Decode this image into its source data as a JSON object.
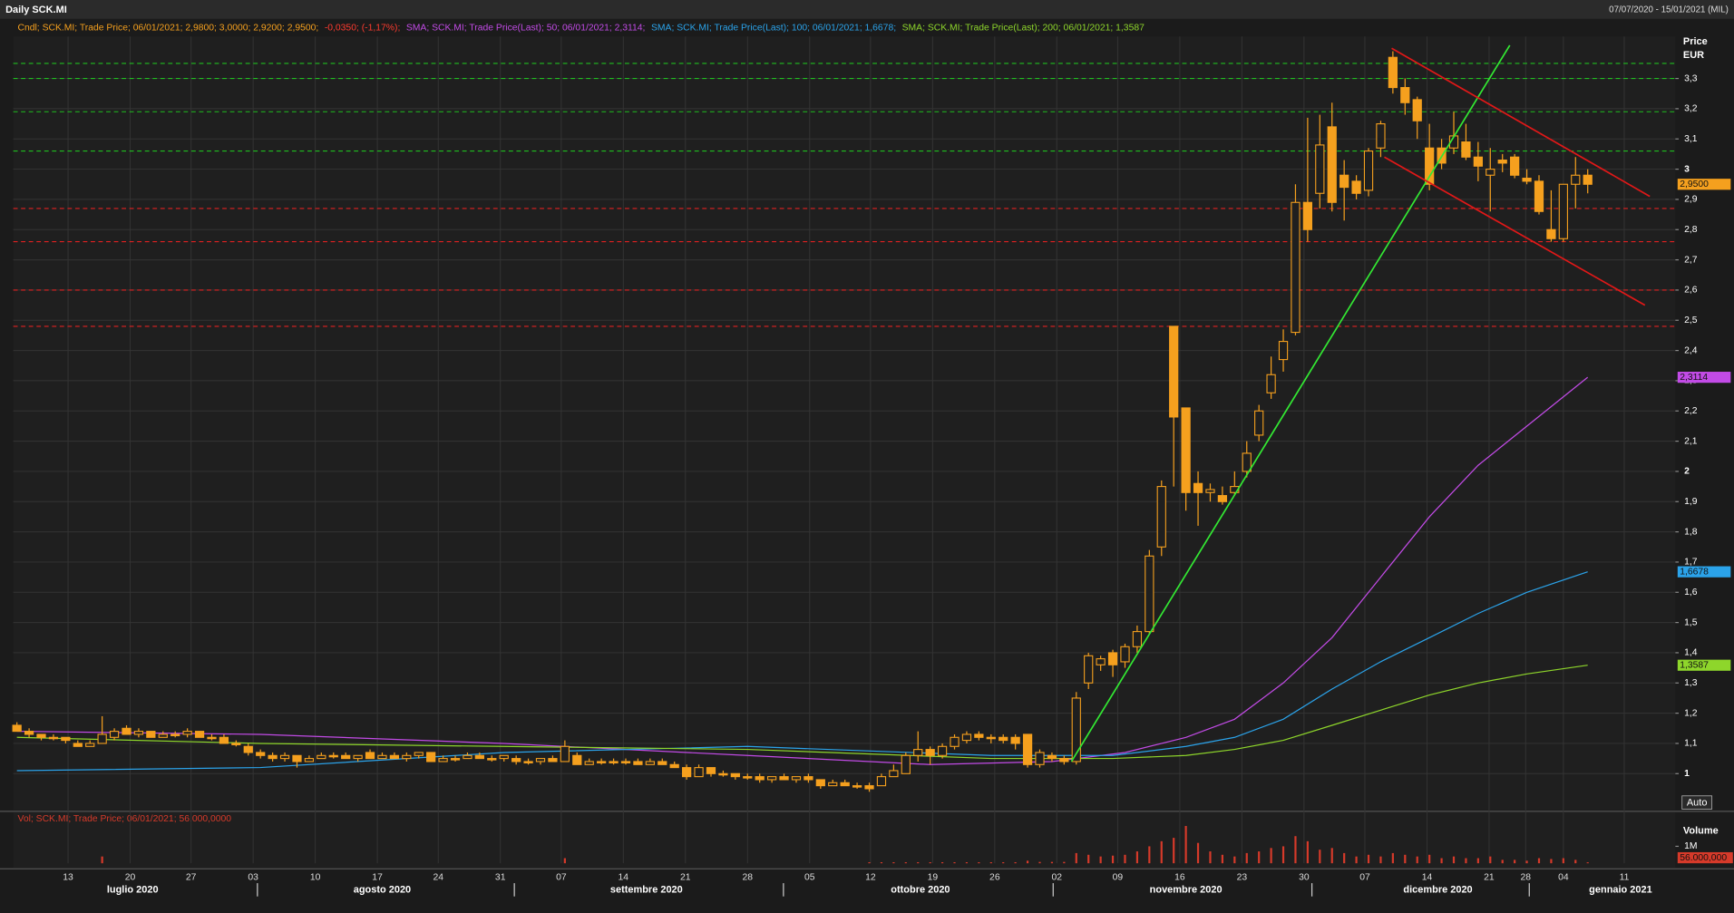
{
  "header": {
    "title": "Daily SCK.MI",
    "range": "07/07/2020 - 15/01/2021 (MIL)"
  },
  "chart_data": {
    "type": "candlestick",
    "candle_legend": "Cndl; SCK.MI; Trade Price; 06/01/2021; 2,9800; 3,0000; 2,9200; 2,9500;",
    "change": "-0,0350; (-1,17%);",
    "color": "#f5a01e",
    "change_color": "#ff3b2f",
    "open": [
      1.16,
      1.14,
      1.13,
      1.12,
      1.12,
      1.1,
      1.09,
      1.1,
      1.12,
      1.15,
      1.13,
      1.14,
      1.12,
      1.13,
      1.13,
      1.14,
      1.12,
      1.12,
      1.1,
      1.09,
      1.07,
      1.06,
      1.05,
      1.06,
      1.04,
      1.05,
      1.06,
      1.06,
      1.05,
      1.07,
      1.05,
      1.06,
      1.05,
      1.06,
      1.07,
      1.04,
      1.05,
      1.05,
      1.06,
      1.05,
      1.05,
      1.05,
      1.04,
      1.04,
      1.05,
      1.04,
      1.06,
      1.03,
      1.04,
      1.04,
      1.04,
      1.04,
      1.03,
      1.04,
      1.03,
      1.02,
      0.99,
      1.02,
      1.0,
      1.0,
      0.99,
      0.99,
      0.98,
      0.99,
      0.98,
      0.99,
      0.98,
      0.96,
      0.97,
      0.96,
      0.96,
      0.96,
      0.99,
      1.0,
      1.06,
      1.08,
      1.06,
      1.09,
      1.11,
      1.13,
      1.12,
      1.12,
      1.12,
      1.13,
      1.03,
      1.06,
      1.05,
      1.04,
      1.3,
      1.36,
      1.4,
      1.37,
      1.42,
      1.47,
      1.75,
      2.48,
      2.21,
      1.96,
      1.93,
      1.92,
      1.93,
      2.0,
      2.12,
      2.26,
      2.37,
      2.46,
      2.89,
      2.92,
      3.14,
      2.98,
      2.96,
      2.93,
      3.07,
      3.37,
      3.27,
      3.23,
      3.07,
      3.07,
      3.07,
      3.09,
      3.04,
      2.98,
      3.03,
      3.04,
      2.97,
      2.96,
      2.8,
      2.77,
      2.95,
      2.98
    ],
    "high": [
      1.17,
      1.15,
      1.13,
      1.13,
      1.12,
      1.11,
      1.11,
      1.19,
      1.15,
      1.16,
      1.15,
      1.14,
      1.14,
      1.14,
      1.15,
      1.14,
      1.13,
      1.13,
      1.11,
      1.1,
      1.08,
      1.07,
      1.07,
      1.06,
      1.06,
      1.07,
      1.07,
      1.07,
      1.06,
      1.08,
      1.07,
      1.07,
      1.07,
      1.07,
      1.07,
      1.06,
      1.06,
      1.07,
      1.07,
      1.06,
      1.06,
      1.06,
      1.05,
      1.05,
      1.06,
      1.11,
      1.07,
      1.05,
      1.05,
      1.05,
      1.05,
      1.05,
      1.05,
      1.05,
      1.04,
      1.03,
      1.03,
      1.02,
      1.01,
      1.0,
      1.0,
      1.0,
      0.99,
      1.0,
      0.99,
      1.0,
      0.98,
      0.98,
      0.98,
      0.97,
      0.97,
      1.0,
      1.03,
      1.07,
      1.14,
      1.09,
      1.1,
      1.13,
      1.14,
      1.14,
      1.13,
      1.13,
      1.13,
      1.13,
      1.08,
      1.07,
      1.06,
      1.27,
      1.4,
      1.39,
      1.41,
      1.43,
      1.49,
      1.74,
      1.97,
      2.48,
      2.21,
      2.0,
      1.96,
      1.95,
      2.0,
      2.1,
      2.22,
      2.38,
      2.47,
      2.95,
      3.17,
      3.18,
      3.22,
      3.03,
      2.98,
      3.07,
      3.16,
      3.39,
      3.3,
      3.24,
      3.15,
      3.1,
      3.19,
      3.15,
      3.09,
      3.07,
      3.05,
      3.05,
      3.0,
      2.98,
      2.93,
      2.95,
      3.04,
      3.0
    ],
    "low": [
      1.14,
      1.12,
      1.11,
      1.11,
      1.1,
      1.09,
      1.09,
      1.1,
      1.11,
      1.13,
      1.12,
      1.12,
      1.12,
      1.12,
      1.12,
      1.12,
      1.11,
      1.1,
      1.09,
      1.06,
      1.05,
      1.04,
      1.04,
      1.02,
      1.04,
      1.05,
      1.05,
      1.05,
      1.04,
      1.05,
      1.05,
      1.05,
      1.04,
      1.05,
      1.04,
      1.04,
      1.04,
      1.05,
      1.05,
      1.04,
      1.04,
      1.03,
      1.03,
      1.03,
      1.04,
      1.04,
      1.03,
      1.03,
      1.03,
      1.03,
      1.03,
      1.03,
      1.03,
      1.03,
      1.02,
      0.98,
      0.99,
      0.99,
      0.99,
      0.98,
      0.98,
      0.97,
      0.97,
      0.98,
      0.97,
      0.97,
      0.95,
      0.96,
      0.96,
      0.95,
      0.94,
      0.96,
      0.99,
      1.0,
      1.04,
      1.03,
      1.05,
      1.08,
      1.1,
      1.11,
      1.1,
      1.1,
      1.08,
      1.02,
      1.02,
      1.04,
      1.03,
      1.03,
      1.28,
      1.34,
      1.32,
      1.35,
      1.4,
      1.46,
      1.72,
      1.95,
      1.87,
      1.82,
      1.9,
      1.89,
      1.92,
      1.98,
      2.1,
      2.24,
      2.33,
      2.45,
      2.76,
      2.87,
      2.86,
      2.83,
      2.9,
      2.91,
      3.04,
      3.25,
      3.18,
      3.1,
      2.93,
      3.0,
      3.05,
      3.03,
      2.96,
      2.86,
      2.99,
      2.97,
      2.95,
      2.85,
      2.76,
      2.76,
      2.87,
      2.92
    ],
    "close": [
      1.14,
      1.13,
      1.12,
      1.12,
      1.11,
      1.09,
      1.1,
      1.13,
      1.14,
      1.13,
      1.14,
      1.12,
      1.13,
      1.13,
      1.14,
      1.12,
      1.12,
      1.1,
      1.1,
      1.07,
      1.06,
      1.05,
      1.06,
      1.04,
      1.05,
      1.06,
      1.06,
      1.05,
      1.06,
      1.05,
      1.06,
      1.05,
      1.06,
      1.07,
      1.04,
      1.05,
      1.05,
      1.06,
      1.05,
      1.05,
      1.06,
      1.04,
      1.04,
      1.05,
      1.04,
      1.09,
      1.03,
      1.04,
      1.04,
      1.04,
      1.04,
      1.03,
      1.04,
      1.03,
      1.02,
      0.99,
      1.02,
      1.0,
      1.0,
      0.99,
      0.99,
      0.98,
      0.99,
      0.98,
      0.99,
      0.98,
      0.96,
      0.97,
      0.96,
      0.96,
      0.95,
      0.99,
      1.01,
      1.06,
      1.08,
      1.06,
      1.09,
      1.12,
      1.13,
      1.12,
      1.12,
      1.11,
      1.1,
      1.03,
      1.07,
      1.05,
      1.04,
      1.25,
      1.39,
      1.38,
      1.36,
      1.42,
      1.47,
      1.72,
      1.95,
      2.18,
      1.93,
      1.93,
      1.94,
      1.9,
      1.95,
      2.06,
      2.2,
      2.32,
      2.43,
      2.89,
      2.8,
      3.08,
      2.89,
      2.94,
      2.92,
      3.06,
      3.15,
      3.27,
      3.22,
      3.16,
      2.95,
      3.02,
      3.11,
      3.04,
      3.01,
      3.0,
      3.02,
      2.98,
      2.96,
      2.86,
      2.77,
      2.95,
      2.98,
      2.95
    ],
    "last_label": "2,9500",
    "series": [
      {
        "name": "SMA; SCK.MI; Trade Price(Last);  50; 06/01/2021; 2,3114;",
        "color": "#c24be6",
        "x": [
          0,
          20,
          40,
          60,
          75,
          85,
          91,
          96,
          100,
          104,
          108,
          112,
          116,
          120,
          124,
          129
        ],
        "values": [
          1.14,
          1.13,
          1.1,
          1.06,
          1.03,
          1.04,
          1.07,
          1.12,
          1.18,
          1.3,
          1.45,
          1.65,
          1.85,
          2.02,
          2.15,
          2.3114
        ],
        "last_label": "2,3114"
      },
      {
        "name": "SMA; SCK.MI; Trade Price(Last);  100; 06/01/2021; 1,6678;",
        "color": "#2ba3ea",
        "x": [
          0,
          20,
          40,
          60,
          80,
          90,
          96,
          100,
          104,
          108,
          112,
          116,
          120,
          124,
          129
        ],
        "values": [
          1.01,
          1.02,
          1.07,
          1.09,
          1.06,
          1.06,
          1.09,
          1.12,
          1.18,
          1.28,
          1.37,
          1.45,
          1.53,
          1.6,
          1.6678
        ],
        "last_label": "1,6678"
      },
      {
        "name": "SMA; SCK.MI; Trade Price(Last);  200; 06/01/2021; 1,3587",
        "color": "#8ed62b",
        "x": [
          0,
          20,
          40,
          60,
          80,
          90,
          96,
          100,
          104,
          108,
          112,
          116,
          120,
          124,
          129
        ],
        "values": [
          1.12,
          1.1,
          1.09,
          1.08,
          1.05,
          1.05,
          1.06,
          1.08,
          1.11,
          1.16,
          1.21,
          1.26,
          1.3,
          1.33,
          1.3587
        ],
        "last_label": "1,3587"
      }
    ],
    "hlines": [
      {
        "value": 3.35,
        "color": "#1fbf1f"
      },
      {
        "value": 3.3,
        "color": "#1fbf1f"
      },
      {
        "value": 3.19,
        "color": "#1fbf1f"
      },
      {
        "value": 3.06,
        "color": "#1fbf1f"
      },
      {
        "value": 2.87,
        "color": "#e02020"
      },
      {
        "value": 2.76,
        "color": "#e02020"
      },
      {
        "value": 2.6,
        "color": "#e02020"
      },
      {
        "value": 2.48,
        "color": "#e02020"
      }
    ],
    "trendlines": [
      {
        "x": [
          86.6,
          122.6
        ],
        "y": [
          1.04,
          3.41
        ],
        "color": "#33e833"
      },
      {
        "x": [
          112.9,
          134.1
        ],
        "y": [
          3.4,
          2.91
        ],
        "color": "#e01818"
      },
      {
        "x": [
          112.3,
          133.7
        ],
        "y": [
          3.04,
          2.55
        ],
        "color": "#e01818"
      }
    ],
    "xlim": [
      -0.3,
      136.2
    ],
    "xticks": [
      {
        "value": 4.2,
        "label": "13"
      },
      {
        "value": 9.3,
        "label": "20"
      },
      {
        "value": 14.3,
        "label": "27"
      },
      {
        "value": 19.4,
        "label": "03"
      },
      {
        "value": 24.5,
        "label": "10"
      },
      {
        "value": 29.6,
        "label": "17"
      },
      {
        "value": 34.6,
        "label": "24"
      },
      {
        "value": 39.7,
        "label": "31"
      },
      {
        "value": 44.7,
        "label": "07"
      },
      {
        "value": 49.8,
        "label": "14"
      },
      {
        "value": 54.9,
        "label": "21"
      },
      {
        "value": 60.0,
        "label": "28"
      },
      {
        "value": 65.1,
        "label": "05"
      },
      {
        "value": 70.1,
        "label": "12"
      },
      {
        "value": 75.2,
        "label": "19"
      },
      {
        "value": 80.3,
        "label": "26"
      },
      {
        "value": 85.4,
        "label": "02"
      },
      {
        "value": 90.4,
        "label": "09"
      },
      {
        "value": 95.5,
        "label": "16"
      },
      {
        "value": 100.6,
        "label": "23"
      },
      {
        "value": 105.7,
        "label": "30"
      },
      {
        "value": 110.7,
        "label": "07"
      },
      {
        "value": 115.8,
        "label": "14"
      },
      {
        "value": 120.9,
        "label": "21"
      },
      {
        "value": 123.9,
        "label": "28"
      },
      {
        "value": 127.0,
        "label": "04"
      },
      {
        "value": 132.0,
        "label": "11"
      }
    ],
    "months": [
      {
        "value": 9.5,
        "label": "luglio 2020"
      },
      {
        "value": 30.0,
        "label": "agosto 2020"
      },
      {
        "value": 51.7,
        "label": "settembre 2020"
      },
      {
        "value": 74.2,
        "label": "ottobre 2020"
      },
      {
        "value": 96.0,
        "label": "novembre 2020"
      },
      {
        "value": 116.7,
        "label": "dicembre 2020"
      },
      {
        "value": 131.7,
        "label": "gennaio 2021"
      }
    ],
    "ylim": [
      0.879,
      3.439
    ],
    "yticks": [
      1,
      {
        "value": 1.1,
        "label": "1,1"
      },
      {
        "value": 1.2,
        "label": "1,2"
      },
      {
        "value": 1.3,
        "label": "1,3"
      },
      {
        "value": 1.4,
        "label": "1,4"
      },
      {
        "value": 1.5,
        "label": "1,5"
      },
      {
        "value": 1.6,
        "label": "1,6"
      },
      {
        "value": 1.7,
        "label": "1,7"
      },
      {
        "value": 1.8,
        "label": "1,8"
      },
      {
        "value": 1.9,
        "label": "1,9"
      },
      2,
      {
        "value": 2.1,
        "label": "2,1"
      },
      {
        "value": 2.2,
        "label": "2,2"
      },
      {
        "value": 2.3,
        "label": "2,3"
      },
      {
        "value": 2.4,
        "label": "2,4"
      },
      {
        "value": 2.5,
        "label": "2,5"
      },
      {
        "value": 2.6,
        "label": "2,6"
      },
      {
        "value": 2.7,
        "label": "2,7"
      },
      {
        "value": 2.8,
        "label": "2,8"
      },
      {
        "value": 2.9,
        "label": "2,9"
      },
      3,
      {
        "value": 3.1,
        "label": "3,1"
      },
      {
        "value": 3.2,
        "label": "3,2"
      },
      {
        "value": 3.3,
        "label": "3,3"
      }
    ],
    "y_label": [
      "Price",
      "EUR"
    ],
    "grid": true,
    "auto_button": "Auto",
    "volume": {
      "legend": "Vol; SCK.MI; Trade Price; 06/01/2021; 56.000,0000",
      "label": "Volume",
      "color": "#d63a2a",
      "values": [
        0,
        0,
        0,
        0,
        0,
        0,
        0,
        400000,
        0,
        0,
        0,
        0,
        0,
        0,
        0,
        0,
        0,
        0,
        0,
        0,
        0,
        0,
        0,
        0,
        0,
        0,
        0,
        0,
        0,
        0,
        0,
        0,
        0,
        0,
        0,
        0,
        0,
        0,
        0,
        0,
        0,
        0,
        0,
        0,
        0,
        300000,
        0,
        0,
        0,
        0,
        0,
        0,
        0,
        0,
        0,
        0,
        0,
        0,
        0,
        0,
        0,
        0,
        0,
        0,
        0,
        0,
        0,
        0,
        0,
        0,
        60000,
        60000,
        60000,
        60000,
        60000,
        60000,
        60000,
        60000,
        60000,
        60000,
        60000,
        60000,
        60000,
        150000,
        80000,
        80000,
        80000,
        600000,
        500000,
        400000,
        450000,
        500000,
        700000,
        1000000,
        1300000,
        1500000,
        2200000,
        1200000,
        700000,
        500000,
        400000,
        600000,
        700000,
        900000,
        1000000,
        1600000,
        1300000,
        800000,
        900000,
        600000,
        400000,
        500000,
        400000,
        600000,
        500000,
        400000,
        500000,
        300000,
        400000,
        300000,
        300000,
        400000,
        200000,
        200000,
        150000,
        300000,
        250000,
        300000,
        200000,
        56000
      ],
      "ylim": [
        0,
        3000000
      ],
      "yticks": [
        {
          "value": 1000000,
          "label": "1M"
        }
      ],
      "last_label": "56.000,000"
    }
  }
}
